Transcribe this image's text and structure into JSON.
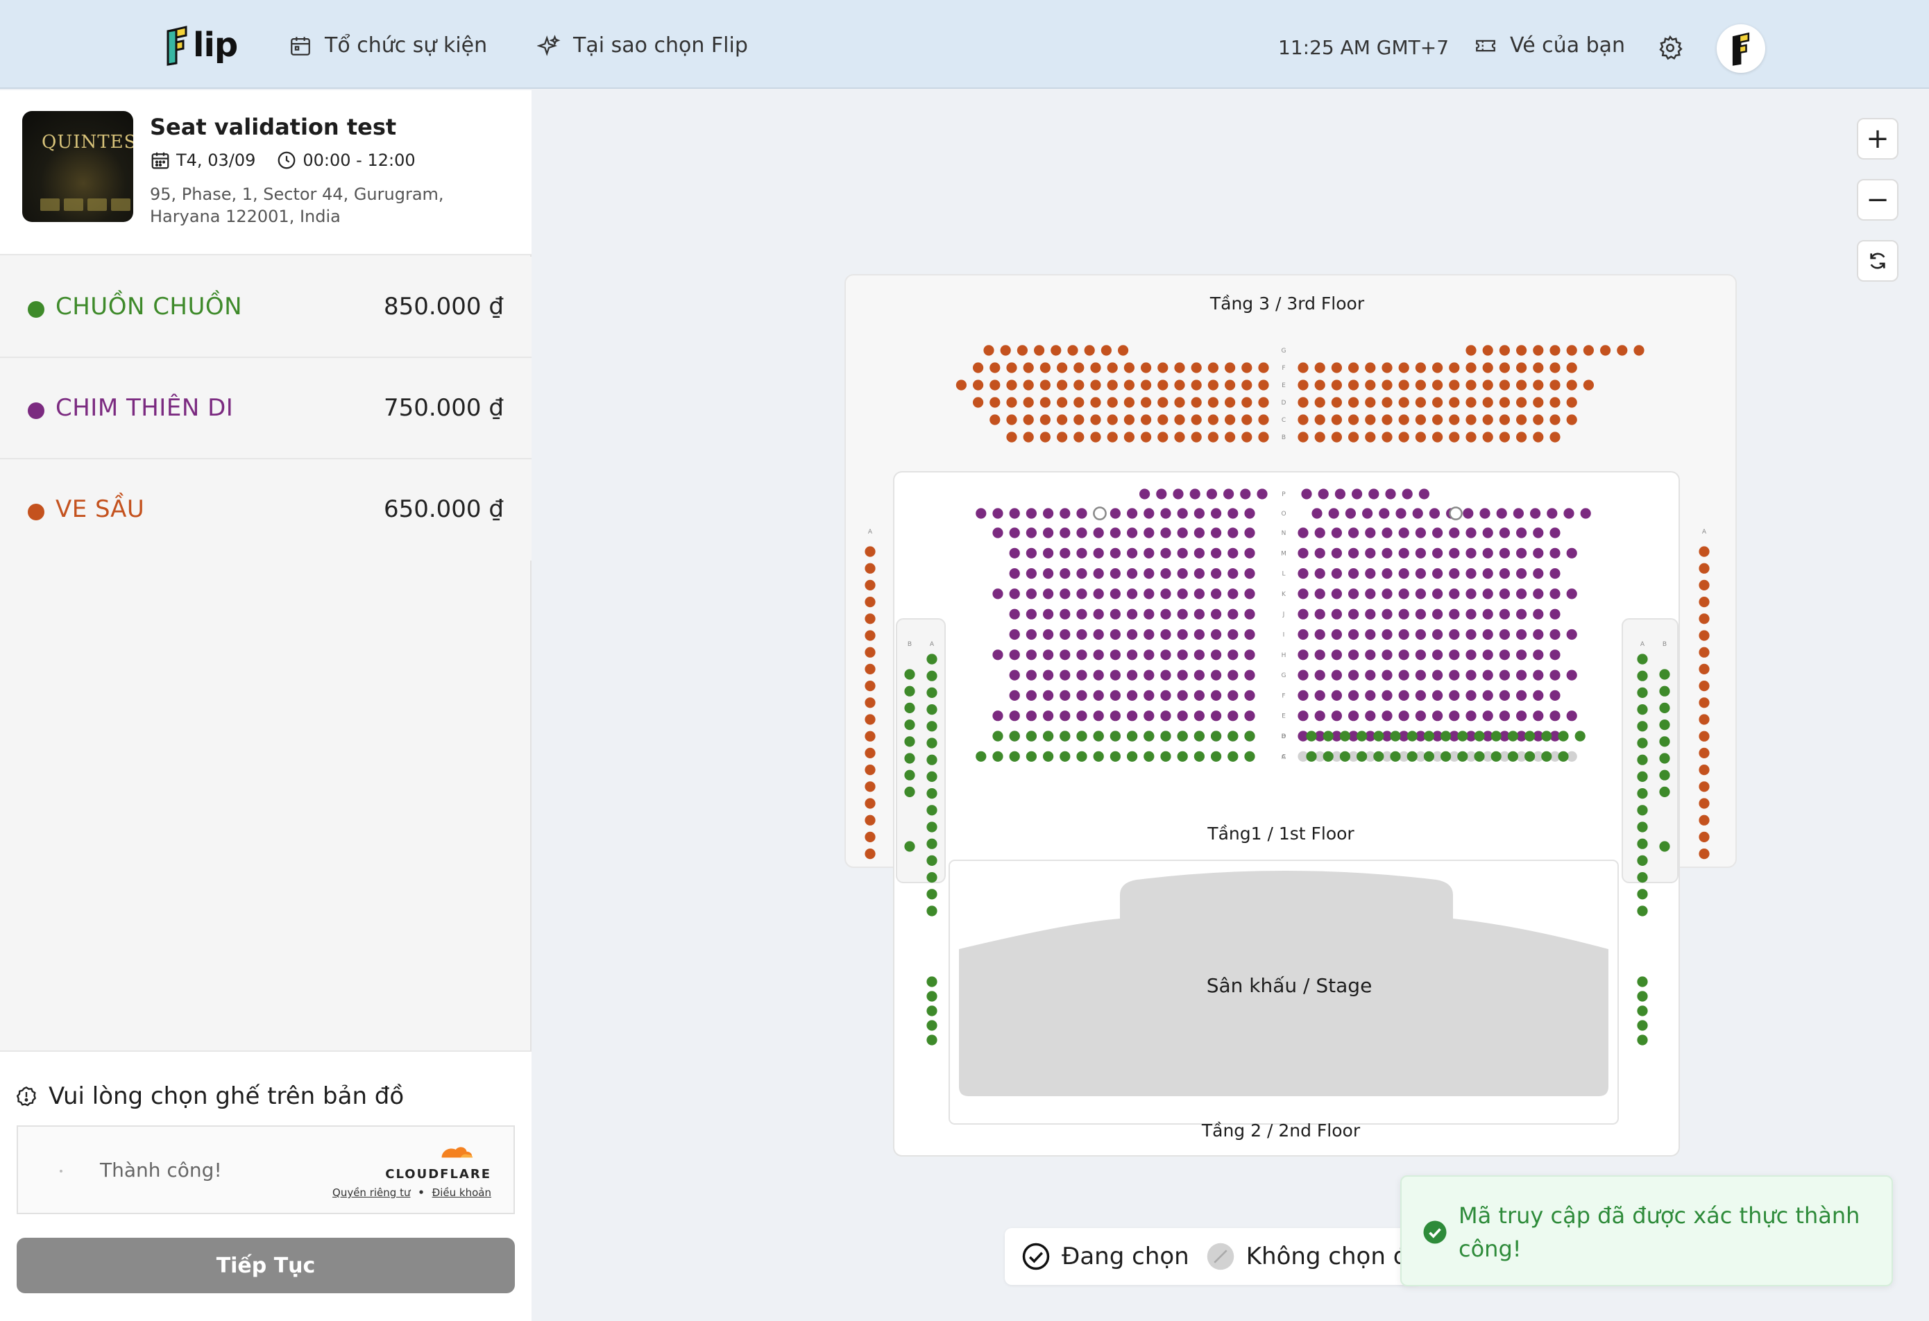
{
  "header": {
    "logo_text": "lip",
    "nav": [
      {
        "label": "Tổ chức sự kiện",
        "icon": "calendar-icon"
      },
      {
        "label": "Tại sao chọn Flip",
        "icon": "sparkle-icon"
      }
    ],
    "time": "11:25 AM GMT+7",
    "tickets_label": "Vé của bạn",
    "tickets_icon": "ticket-icon",
    "settings_icon": "gear-icon",
    "avatar_icon": "flip-avatar-icon"
  },
  "event": {
    "thumbnail_title": "QUINTESS",
    "title": "Seat validation test",
    "date": "T4, 03/09",
    "time": "00:00 - 12:00",
    "address": "95, Phase, 1, Sector 44, Gurugram, Haryana 122001, India"
  },
  "tiers": [
    {
      "name": "CHUỒN CHUỒN",
      "price": "850.000 ₫",
      "color": "#3e8a2a"
    },
    {
      "name": "CHIM THIÊN DI",
      "price": "750.000 ₫",
      "color": "#7b2a80"
    },
    {
      "name": "VE SẦU",
      "price": "650.000 ₫",
      "color": "#c4521e"
    }
  ],
  "selection": {
    "hint": "Vui lòng chọn ghế trên bản đồ",
    "captcha_status": "Thành công!",
    "captcha_brand": "CLOUDFLARE",
    "captcha_privacy": "Quyền riêng tư",
    "captcha_separator": "•",
    "captcha_terms": "Điều khoản",
    "continue_label": "Tiếp Tục"
  },
  "map_controls": {
    "zoom_in": "+",
    "zoom_out": "−",
    "reset_icon": "refresh-icon"
  },
  "seat_map": {
    "floor3_label": "Tầng 3 / 3rd Floor",
    "floor1_label": "Tầng1 / 1st Floor",
    "stage_label": "Sân khấu / Stage",
    "floor2_label": "Tầng 2 / 2nd Floor",
    "floor3_rows": [
      "G",
      "F",
      "E",
      "D",
      "C",
      "B"
    ],
    "floor1_rows": [
      "P",
      "O",
      "N",
      "M",
      "L",
      "K",
      "J",
      "I",
      "H",
      "G",
      "F",
      "E",
      "D",
      "C",
      "B",
      "A"
    ],
    "side_labels": [
      "A",
      "B"
    ],
    "colors": {
      "green": "#3e8a2a",
      "purple": "#7b2a80",
      "orange": "#c4521e",
      "unavailable": "#d2d2d2"
    }
  },
  "legend": {
    "selected": "Đang chọn",
    "unavailable": "Không chọn được"
  },
  "toast": {
    "message": "Mã truy cập đã được xác thực thành công!",
    "color": "#2e8b3a"
  }
}
